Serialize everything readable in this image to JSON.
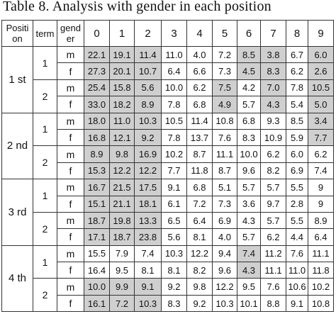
{
  "caption": "Table 8. Analysis with gender in each position",
  "headers": {
    "position": "Positi on",
    "term": "term",
    "gender": "gend er",
    "cols": [
      "0",
      "1",
      "2",
      "3",
      "4",
      "5",
      "6",
      "7",
      "8",
      "9"
    ]
  },
  "highlight_color": "#cfcfcf",
  "groups": [
    {
      "position": "1 st",
      "terms": [
        {
          "term": "1",
          "rows": [
            {
              "gender": "m",
              "values": [
                "22.1",
                "19.1",
                "11.4",
                "11.0",
                "4.0",
                "7.2",
                "8.5",
                "3.8",
                "6.7",
                "6.0"
              ],
              "hl": [
                0,
                1,
                2,
                6,
                7,
                9
              ]
            },
            {
              "gender": "f",
              "values": [
                "27.3",
                "20.1",
                "10.7",
                "6.4",
                "6.6",
                "7.3",
                "4.5",
                "8.3",
                "6.2",
                "2.6"
              ],
              "hl": [
                0,
                1,
                2,
                6,
                7,
                9
              ]
            }
          ]
        },
        {
          "term": "2",
          "rows": [
            {
              "gender": "m",
              "values": [
                "25.4",
                "15.8",
                "5.6",
                "10.0",
                "6.2",
                "7.5",
                "4.2",
                "7.0",
                "7.8",
                "10.5"
              ],
              "hl": [
                0,
                1,
                2,
                5,
                7,
                9
              ]
            },
            {
              "gender": "f",
              "values": [
                "33.0",
                "18.2",
                "8.9",
                "7.8",
                "6.8",
                "4.9",
                "5.7",
                "4.3",
                "5.4",
                "5.0"
              ],
              "hl": [
                0,
                1,
                2,
                5,
                7,
                9
              ]
            }
          ]
        }
      ]
    },
    {
      "position": "2 nd",
      "terms": [
        {
          "term": "1",
          "rows": [
            {
              "gender": "m",
              "values": [
                "18.0",
                "11.0",
                "10.3",
                "10.5",
                "11.4",
                "10.8",
                "6.8",
                "9.3",
                "8.5",
                "3.4"
              ],
              "hl": [
                0,
                1,
                2,
                9
              ]
            },
            {
              "gender": "f",
              "values": [
                "16.8",
                "12.1",
                "9.2",
                "7.8",
                "13.7",
                "7.6",
                "8.3",
                "10.9",
                "5.9",
                "7.7"
              ],
              "hl": [
                0,
                1,
                2,
                9
              ]
            }
          ]
        },
        {
          "term": "2",
          "rows": [
            {
              "gender": "m",
              "values": [
                "8.9",
                "9.8",
                "16.9",
                "10.2",
                "8.7",
                "11.1",
                "10.0",
                "6.2",
                "6.0",
                "6.2"
              ],
              "hl": [
                0,
                1,
                2
              ]
            },
            {
              "gender": "f",
              "values": [
                "15.3",
                "12.2",
                "12.2",
                "7.7",
                "11.8",
                "8.7",
                "9.6",
                "8.2",
                "6.9",
                "7.4"
              ],
              "hl": [
                0,
                1,
                2
              ]
            }
          ]
        }
      ]
    },
    {
      "position": "3 rd",
      "terms": [
        {
          "term": "1",
          "rows": [
            {
              "gender": "m",
              "values": [
                "16.7",
                "21.5",
                "17.5",
                "9.1",
                "6.8",
                "5.1",
                "5.7",
                "5.7",
                "5.5",
                "9"
              ],
              "hl": [
                0,
                1,
                2
              ]
            },
            {
              "gender": "f",
              "values": [
                "15.1",
                "21.1",
                "18.1",
                "6.1",
                "7.2",
                "7.3",
                "3.6",
                "9.7",
                "2.8",
                "9"
              ],
              "hl": [
                0,
                1,
                2
              ]
            }
          ]
        },
        {
          "term": "2",
          "rows": [
            {
              "gender": "m",
              "values": [
                "18.7",
                "19.8",
                "13.3",
                "6.5",
                "6.4",
                "6.9",
                "4.3",
                "5.7",
                "5.5",
                "8.9"
              ],
              "hl": [
                0,
                1,
                2
              ]
            },
            {
              "gender": "f",
              "values": [
                "17.1",
                "18.7",
                "23.8",
                "5.6",
                "8.1",
                "4.0",
                "5.7",
                "6.2",
                "4.4",
                "6.4"
              ],
              "hl": [
                0,
                1,
                2
              ]
            }
          ]
        }
      ]
    },
    {
      "position": "4 th",
      "terms": [
        {
          "term": "1",
          "rows": [
            {
              "gender": "m",
              "values": [
                "15.5",
                "7.9",
                "7.4",
                "10.3",
                "12.2",
                "9.4",
                "7.4",
                "11.2",
                "7.6",
                "11.1"
              ],
              "hl": [
                6
              ]
            },
            {
              "gender": "f",
              "values": [
                "16.4",
                "9.5",
                "8.1",
                "8.1",
                "8.2",
                "9.6",
                "4.3",
                "11.1",
                "11.0",
                "11.8"
              ],
              "hl": [
                6
              ]
            }
          ]
        },
        {
          "term": "2",
          "rows": [
            {
              "gender": "m",
              "values": [
                "10.0",
                "9.9",
                "9.1",
                "9.2",
                "9.8",
                "12.2",
                "9.5",
                "7.6",
                "10.6",
                "10.2"
              ],
              "hl": [
                0,
                1,
                2
              ]
            },
            {
              "gender": "f",
              "values": [
                "16.1",
                "7.2",
                "10.3",
                "8.3",
                "9.2",
                "10.3",
                "10.1",
                "8.8",
                "9.1",
                "10.8"
              ],
              "hl": [
                0,
                1,
                2
              ]
            }
          ]
        }
      ]
    }
  ]
}
